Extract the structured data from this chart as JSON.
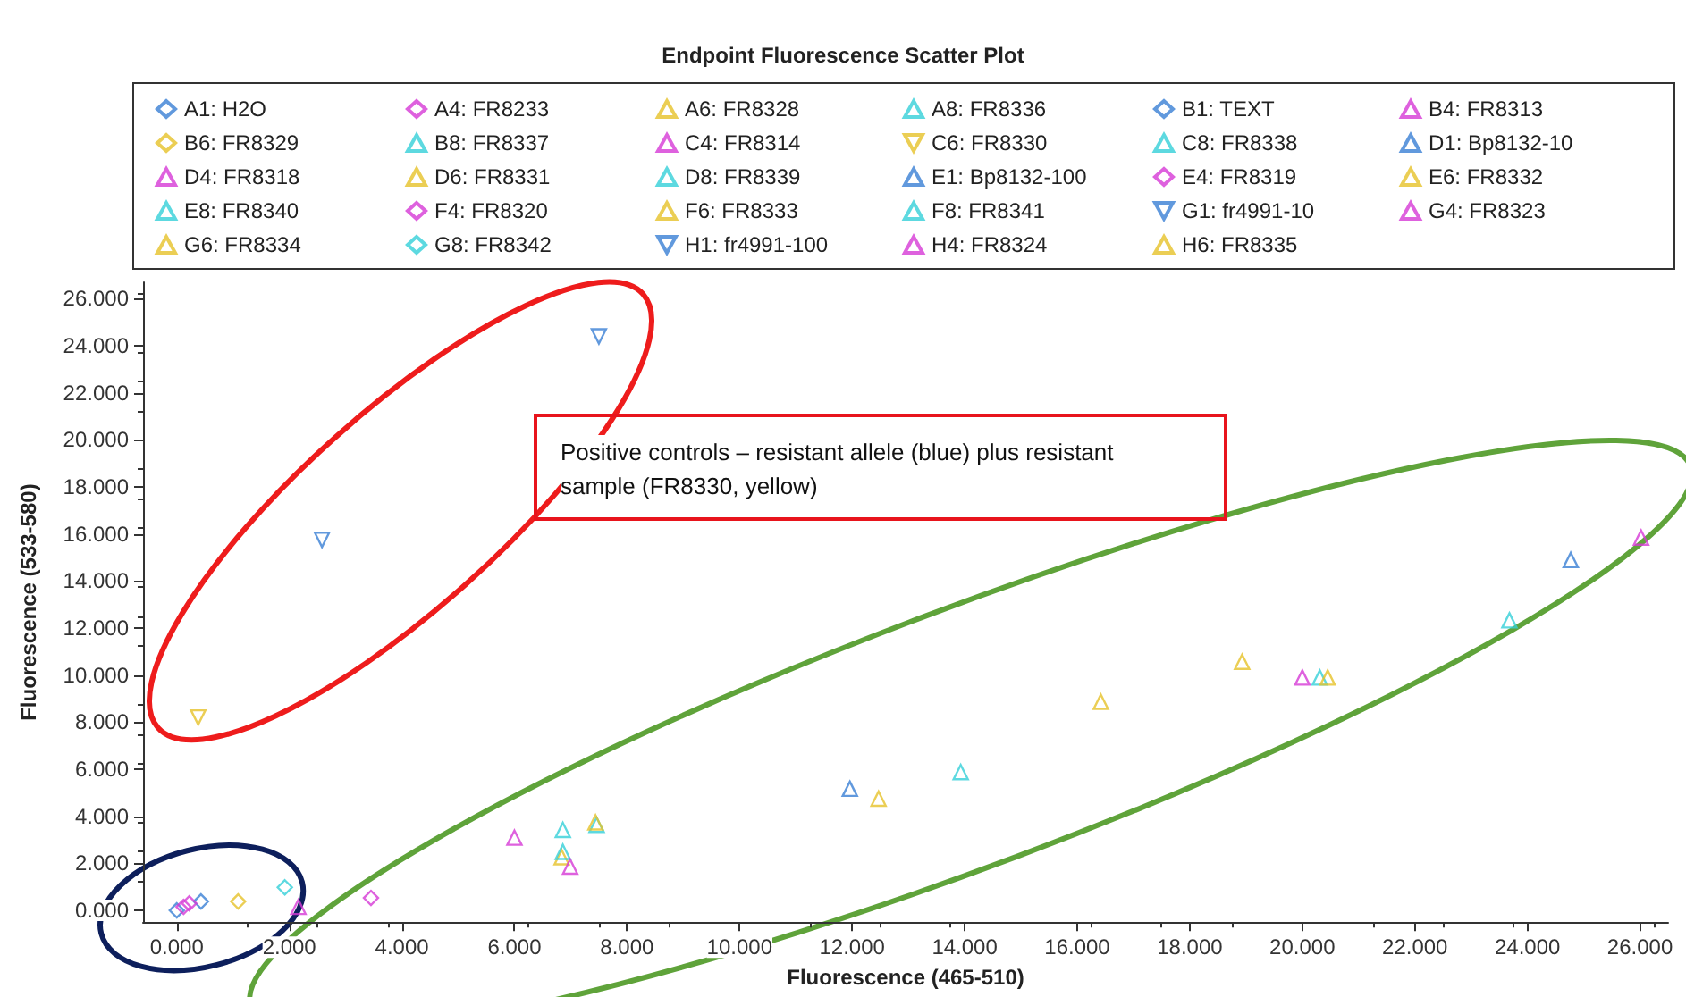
{
  "chart_data": {
    "type": "scatter",
    "title": "Endpoint Fluorescence Scatter Plot",
    "xlabel": "Fluorescence (465-510)",
    "ylabel": "Fluorescence (533-580)",
    "annotations": [
      "Positive controls – resistant allele (blue) plus resistant sample (FR8330, yellow)"
    ],
    "legend": "top",
    "grid": false,
    "xlim": [
      -0.6,
      26.5
    ],
    "ylim": [
      -0.5,
      26.7
    ],
    "xticks": [
      {
        "value": 0,
        "label": "0.000"
      },
      {
        "value": 2,
        "label": "2.000"
      },
      {
        "value": 4,
        "label": "4.000"
      },
      {
        "value": 6,
        "label": "6.000"
      },
      {
        "value": 8,
        "label": "8.000"
      },
      {
        "value": 10,
        "label": "10.000"
      },
      {
        "value": 12,
        "label": "12.000"
      },
      {
        "value": 14,
        "label": "14.000"
      },
      {
        "value": 16,
        "label": "16.000"
      },
      {
        "value": 18,
        "label": "18.000"
      },
      {
        "value": 20,
        "label": "20.000"
      },
      {
        "value": 22,
        "label": "22.000"
      },
      {
        "value": 24,
        "label": "24.000"
      },
      {
        "value": 26,
        "label": "26.000"
      }
    ],
    "yticks": [
      {
        "value": 0,
        "label": "0.000"
      },
      {
        "value": 2,
        "label": "2.000"
      },
      {
        "value": 4,
        "label": "4.000"
      },
      {
        "value": 6,
        "label": "6.000"
      },
      {
        "value": 8,
        "label": "8.000"
      },
      {
        "value": 10,
        "label": "10.000"
      },
      {
        "value": 12,
        "label": "12.000"
      },
      {
        "value": 14,
        "label": "14.000"
      },
      {
        "value": 16,
        "label": "16.000"
      },
      {
        "value": 18,
        "label": "18.000"
      },
      {
        "value": 20,
        "label": "20.000"
      },
      {
        "value": 22,
        "label": "22.000"
      },
      {
        "value": 24,
        "label": "24.000"
      },
      {
        "value": 26,
        "label": "26.000"
      }
    ],
    "series": [
      {
        "name": "A1: H2O",
        "color": "#3a7fd5",
        "marker": "diamond",
        "x": [
          0
        ],
        "values": [
          0
        ]
      },
      {
        "name": "A4: FR8233",
        "color": "#d63ad6",
        "marker": "diamond",
        "x": [
          0.12
        ],
        "values": [
          0.15
        ]
      },
      {
        "name": "A6: FR8328",
        "color": "#e6c229",
        "marker": "triangle",
        "x": [
          6.84
        ],
        "values": [
          2.26
        ]
      },
      {
        "name": "A8: FR8336",
        "color": "#35d0d8",
        "marker": "triangle",
        "x": [
          6.86
        ],
        "values": [
          3.42
        ]
      },
      {
        "name": "B1: TEXT",
        "color": "#3a7fd5",
        "marker": "diamond",
        "x": [
          0.43
        ],
        "values": [
          0.38
        ]
      },
      {
        "name": "B4: FR8313",
        "color": "#d63ad6",
        "marker": "triangle",
        "x": [
          2.16
        ],
        "values": [
          0.15
        ]
      },
      {
        "name": "B6: FR8329",
        "color": "#e6c229",
        "marker": "diamond",
        "x": [
          1.09
        ],
        "values": [
          0.38
        ]
      },
      {
        "name": "B8: FR8337",
        "color": "#35d0d8",
        "marker": "triangle",
        "x": [
          6.86
        ],
        "values": [
          2.49
        ]
      },
      {
        "name": "C4: FR8314",
        "color": "#d63ad6",
        "marker": "triangle",
        "x": [
          6.0
        ],
        "values": [
          3.09
        ]
      },
      {
        "name": "C6: FR8330",
        "color": "#e6c229",
        "marker": "triangle-down",
        "x": [
          0.38
        ],
        "values": [
          8.2
        ]
      },
      {
        "name": "C8: FR8338",
        "color": "#35d0d8",
        "marker": "triangle",
        "x": [
          7.46
        ],
        "values": [
          3.64
        ]
      },
      {
        "name": "D1: Bp8132-10",
        "color": "#3a7fd5",
        "marker": "triangle",
        "x": [
          11.96
        ],
        "values": [
          5.17
        ]
      },
      {
        "name": "D4: FR8318",
        "color": "#d63ad6",
        "marker": "triangle",
        "x": [
          6.99
        ],
        "values": [
          1.86
        ]
      },
      {
        "name": "D6: FR8331",
        "color": "#e6c229",
        "marker": "triangle",
        "x": [
          7.44
        ],
        "values": [
          3.74
        ]
      },
      {
        "name": "D8: FR8339",
        "color": "#35d0d8",
        "marker": "triangle",
        "x": [
          13.93
        ],
        "values": [
          5.88
        ]
      },
      {
        "name": "E1: Bp8132-100",
        "color": "#3a7fd5",
        "marker": "triangle",
        "x": [
          24.77
        ],
        "values": [
          14.9
        ]
      },
      {
        "name": "E4: FR8319",
        "color": "#d63ad6",
        "marker": "diamond",
        "x": [
          0.22
        ],
        "values": [
          0.3
        ]
      },
      {
        "name": "E6: FR8332",
        "color": "#e6c229",
        "marker": "triangle",
        "x": [
          12.47
        ],
        "values": [
          4.75
        ]
      },
      {
        "name": "E8: FR8340",
        "color": "#35d0d8",
        "marker": "triangle",
        "x": [
          20.31
        ],
        "values": [
          9.9
        ]
      },
      {
        "name": "F4: FR8320",
        "color": "#d63ad6",
        "marker": "diamond",
        "x": [
          3.45
        ],
        "values": [
          0.53
        ]
      },
      {
        "name": "F6: FR8333",
        "color": "#e6c229",
        "marker": "triangle",
        "x": [
          16.42
        ],
        "values": [
          8.87
        ]
      },
      {
        "name": "F8: FR8341",
        "color": "#35d0d8",
        "marker": "triangle",
        "x": [
          23.68
        ],
        "values": [
          12.33
        ]
      },
      {
        "name": "G1: fr4991-10",
        "color": "#3a7fd5",
        "marker": "triangle-down",
        "x": [
          2.58
        ],
        "values": [
          15.75
        ]
      },
      {
        "name": "G4: FR8323",
        "color": "#d63ad6",
        "marker": "triangle",
        "x": [
          20.0
        ],
        "values": [
          9.9
        ]
      },
      {
        "name": "G6: FR8334",
        "color": "#e6c229",
        "marker": "triangle",
        "x": [
          18.93
        ],
        "values": [
          10.57
        ]
      },
      {
        "name": "G8: FR8342",
        "color": "#35d0d8",
        "marker": "diamond",
        "x": [
          1.92
        ],
        "values": [
          0.98
        ]
      },
      {
        "name": "H1: fr4991-100",
        "color": "#3a7fd5",
        "marker": "triangle-down",
        "x": [
          7.5
        ],
        "values": [
          24.4
        ]
      },
      {
        "name": "H4: FR8324",
        "color": "#d63ad6",
        "marker": "triangle",
        "x": [
          26.02
        ],
        "values": [
          15.85
        ]
      },
      {
        "name": "H6: FR8335",
        "color": "#e6c229",
        "marker": "triangle",
        "x": [
          20.45
        ],
        "values": [
          9.9
        ]
      }
    ]
  }
}
